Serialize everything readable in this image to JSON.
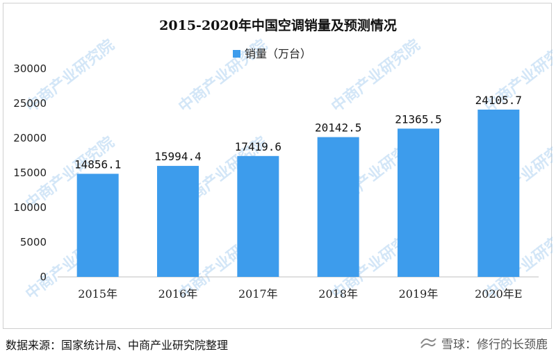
{
  "watermark_text": "中商产业研究院",
  "chart_data": {
    "type": "bar",
    "title": "2015-2020年中国空调销量及预测情况",
    "categories": [
      "2015年",
      "2016年",
      "2017年",
      "2018年",
      "2019年",
      "2020年E"
    ],
    "series": [
      {
        "name": "销量（万台）",
        "values": [
          14856.1,
          15994.4,
          17419.6,
          20142.5,
          21365.5,
          24105.7
        ],
        "labels": [
          "14856.1",
          "15994.4",
          "17419.6",
          "20142.5",
          "21365.5",
          "24105.7"
        ]
      }
    ],
    "ylim": [
      0,
      30000
    ],
    "yticks": [
      0,
      5000,
      10000,
      15000,
      20000,
      25000,
      30000
    ],
    "xlabel": "",
    "ylabel": "",
    "grid": false,
    "legend_placement": "top-center",
    "bar_color": "#3d9cec"
  },
  "footer": {
    "source": "数据来源：国家统计局、中商产业研究院整理",
    "watermark_brand": "雪球：修行的长颈鹿"
  }
}
